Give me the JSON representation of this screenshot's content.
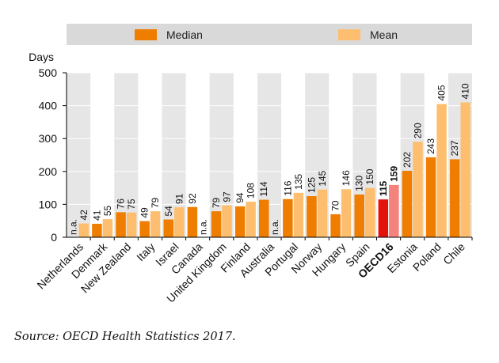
{
  "colors": {
    "median": "#ef7d00",
    "mean": "#fdbf6f",
    "oecd_median": "#e3120b",
    "oecd_mean": "#f4837d",
    "legend_bg": "#d9d9d9",
    "axis": "#000000",
    "column_bg": "#e6e6e6"
  },
  "legend": {
    "median_label": "Median",
    "mean_label": "Mean"
  },
  "source": "Source: OECD Health Statistics 2017.",
  "chart_data": {
    "type": "bar",
    "ylabel": "Days",
    "ylim": [
      0,
      500
    ],
    "yticks": [
      0,
      100,
      200,
      300,
      400,
      500
    ],
    "categories": [
      "Netherlands",
      "Denmark",
      "New Zealand",
      "Italy",
      "Israel",
      "Canada",
      "United Kingdom",
      "Finland",
      "Australia",
      "Portugal",
      "Norway",
      "Hungary",
      "Spain",
      "OECD16",
      "Estonia",
      "Poland",
      "Chile"
    ],
    "highlight_category": "OECD16",
    "series": [
      {
        "name": "Median",
        "values": [
          null,
          41,
          76,
          49,
          54,
          92,
          79,
          94,
          114,
          116,
          125,
          70,
          130,
          115,
          202,
          243,
          237
        ]
      },
      {
        "name": "Mean",
        "values": [
          42,
          55,
          75,
          79,
          91,
          null,
          97,
          108,
          null,
          135,
          145,
          146,
          150,
          159,
          290,
          405,
          410
        ]
      }
    ],
    "median_labels": [
      "n.a.",
      "41",
      "76",
      "49",
      "54",
      "92",
      "79",
      "94",
      "114",
      "116",
      "125",
      "70",
      "130",
      "115",
      "202",
      "243",
      "237"
    ],
    "mean_labels": [
      "42",
      "55",
      "75",
      "79",
      "91",
      "n.a.",
      "97",
      "108",
      "n.a.",
      "135",
      "145",
      "146",
      "150",
      "159",
      "290",
      "405",
      "410"
    ]
  }
}
